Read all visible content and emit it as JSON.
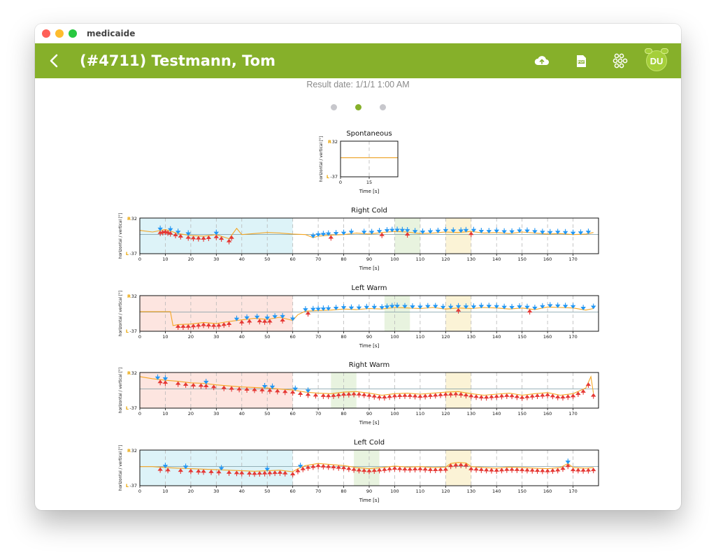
{
  "app_name": "medicaide",
  "header": {
    "title": "(#4711) Testmann, Tom",
    "avatar_initials": "DU",
    "accent_color": "#86b02a",
    "icons": [
      "back-chevron-icon",
      "cloud-upload-icon",
      "pdf-icon",
      "molecule-network-icon"
    ]
  },
  "result_date": "Result date: 1/1/1 1:00 AM",
  "pager": {
    "pages": 3,
    "active_index": 1
  },
  "chart_data": [
    {
      "type": "line",
      "title": "Spontaneous",
      "xlabel": "Time [s]",
      "ylabel": "horizontal / vertical [°]",
      "y_top_label": "32",
      "y_top_side": "R",
      "y_bottom_label": "-37",
      "y_bottom_side": "L",
      "xlim": [
        0,
        30
      ],
      "ylim": [
        -37,
        32
      ],
      "x_ticks": [
        0,
        15
      ],
      "baseline": 0,
      "series": [
        {
          "color": "#f5a623",
          "x": [
            0,
            30
          ],
          "y": [
            0,
            0
          ]
        }
      ]
    },
    {
      "type": "line",
      "title": "Right Cold",
      "xlabel": "Time [s]",
      "ylabel": "horizontal / vertical [°]",
      "y_top_label": "32",
      "y_top_side": "R",
      "y_bottom_label": "-37",
      "y_bottom_side": "L",
      "xlim": [
        0,
        180
      ],
      "ylim": [
        -37,
        32
      ],
      "x_ticks": [
        0,
        10,
        20,
        30,
        40,
        50,
        60,
        70,
        80,
        90,
        100,
        110,
        120,
        130,
        140,
        150,
        160,
        170
      ],
      "baseline": 0,
      "regions": [
        {
          "from": 0,
          "to": 60,
          "color": "#ddf3f8"
        },
        {
          "from": 100,
          "to": 110,
          "color": "#e8f3df"
        },
        {
          "from": 120,
          "to": 130,
          "color": "#fbf3d6"
        }
      ],
      "series": [
        {
          "color": "#f5a623",
          "x": [
            0,
            5,
            10,
            15,
            20,
            25,
            30,
            35,
            38,
            40,
            45,
            50,
            55,
            60,
            65,
            68,
            70,
            75,
            80,
            85,
            90,
            95,
            100,
            105,
            110,
            115,
            120,
            125,
            130,
            135,
            140,
            145,
            150,
            155,
            160,
            165,
            170,
            175,
            178
          ],
          "y": [
            8,
            5,
            10,
            2,
            -2,
            -3,
            0,
            -8,
            12,
            0,
            2,
            4,
            3,
            1,
            0,
            -6,
            -3,
            -1,
            0,
            3,
            1,
            4,
            6,
            5,
            2,
            3,
            5,
            4,
            6,
            3,
            4,
            2,
            5,
            3,
            1,
            2,
            0,
            1,
            4
          ]
        }
      ],
      "markers_up": {
        "color": "#e53935",
        "x": [
          8,
          9,
          10,
          11,
          12,
          14,
          16,
          19,
          21,
          23,
          25,
          27,
          30,
          32,
          35,
          36,
          75,
          95,
          105,
          130
        ]
      },
      "markers_down": {
        "color": "#2196f3",
        "x": [
          8,
          12,
          15,
          19,
          30,
          68,
          70,
          72,
          74,
          77,
          80,
          83,
          88,
          91,
          94,
          97,
          99,
          101,
          103,
          105,
          108,
          111,
          114,
          117,
          120,
          123,
          126,
          128,
          131,
          134,
          137,
          140,
          143,
          146,
          149,
          152,
          155,
          158,
          161,
          164,
          167,
          170,
          173,
          176
        ]
      }
    },
    {
      "type": "line",
      "title": "Left Warm",
      "xlabel": "Time [s]",
      "ylabel": "horizontal / vertical [°]",
      "y_top_label": "32",
      "y_top_side": "R",
      "y_bottom_label": "-37",
      "y_bottom_side": "L",
      "xlim": [
        0,
        180
      ],
      "ylim": [
        -37,
        32
      ],
      "x_ticks": [
        0,
        10,
        20,
        30,
        40,
        50,
        60,
        70,
        80,
        90,
        100,
        110,
        120,
        130,
        140,
        150,
        160,
        170
      ],
      "baseline": 0,
      "regions": [
        {
          "from": 0,
          "to": 60,
          "color": "#fde5e0"
        },
        {
          "from": 96,
          "to": 106,
          "color": "#e8f3df"
        },
        {
          "from": 120,
          "to": 130,
          "color": "#fbf3d6"
        }
      ],
      "series": [
        {
          "color": "#f5a623",
          "x": [
            0,
            5,
            12,
            13,
            15,
            20,
            25,
            30,
            35,
            40,
            45,
            50,
            55,
            60,
            62,
            65,
            70,
            75,
            80,
            85,
            90,
            95,
            100,
            105,
            110,
            115,
            120,
            125,
            130,
            135,
            140,
            145,
            150,
            155,
            160,
            165,
            170,
            175,
            178
          ],
          "y": [
            1,
            1,
            1,
            -26,
            -24,
            -23,
            -20,
            -22,
            -18,
            -15,
            -12,
            -14,
            -10,
            -16,
            -5,
            2,
            3,
            4,
            6,
            5,
            7,
            6,
            9,
            8,
            7,
            9,
            6,
            8,
            7,
            9,
            8,
            6,
            8,
            5,
            10,
            9,
            8,
            4,
            7
          ]
        }
      ],
      "markers_up": {
        "color": "#e53935",
        "x": [
          15,
          17,
          19,
          21,
          23,
          25,
          27,
          29,
          31,
          33,
          35,
          40,
          43,
          47,
          49,
          51,
          56,
          66,
          125,
          153
        ]
      },
      "markers_down": {
        "color": "#2196f3",
        "x": [
          38,
          42,
          46,
          50,
          53,
          56,
          60,
          65,
          68,
          70,
          72,
          74,
          77,
          80,
          83,
          86,
          89,
          92,
          95,
          97,
          99,
          101,
          104,
          107,
          110,
          113,
          116,
          119,
          122,
          125,
          128,
          131,
          134,
          137,
          140,
          143,
          146,
          149,
          152,
          155,
          158,
          161,
          164,
          167,
          170,
          174,
          178
        ]
      }
    },
    {
      "type": "line",
      "title": "Right Warm",
      "xlabel": "Time [s]",
      "ylabel": "horizontal / vertical [°]",
      "y_top_label": "32",
      "y_top_side": "R",
      "y_bottom_label": "-37",
      "y_bottom_side": "L",
      "xlim": [
        0,
        180
      ],
      "ylim": [
        -37,
        32
      ],
      "x_ticks": [
        0,
        10,
        20,
        30,
        40,
        50,
        60,
        70,
        80,
        90,
        100,
        110,
        120,
        130,
        140,
        150,
        160,
        170
      ],
      "baseline": 0,
      "regions": [
        {
          "from": 0,
          "to": 60,
          "color": "#fde5e0"
        },
        {
          "from": 75,
          "to": 85,
          "color": "#e8f3df"
        },
        {
          "from": 120,
          "to": 130,
          "color": "#fbf3d6"
        }
      ],
      "series": [
        {
          "color": "#f5a623",
          "x": [
            0,
            5,
            10,
            15,
            20,
            25,
            30,
            35,
            40,
            45,
            50,
            55,
            60,
            65,
            70,
            75,
            80,
            85,
            90,
            95,
            100,
            105,
            110,
            115,
            120,
            125,
            130,
            135,
            140,
            145,
            150,
            155,
            160,
            165,
            170,
            175,
            177,
            178
          ],
          "y": [
            24,
            20,
            17,
            15,
            12,
            11,
            8,
            6,
            4,
            3,
            2,
            0,
            -2,
            -6,
            -8,
            -9,
            -6,
            -5,
            -8,
            -12,
            -9,
            -8,
            -10,
            -8,
            -6,
            -5,
            -9,
            -12,
            -10,
            -8,
            -12,
            -9,
            -7,
            -12,
            -9,
            2,
            24,
            -8
          ]
        }
      ],
      "markers_up": {
        "color": "#e53935",
        "x": [
          8,
          10,
          15,
          18,
          21,
          24,
          26,
          29,
          33,
          36,
          39,
          42,
          45,
          48,
          51,
          54,
          57,
          60,
          63,
          66,
          69,
          72,
          74,
          76,
          78,
          80,
          82,
          84,
          86,
          88,
          90,
          92,
          94,
          96,
          98,
          100,
          102,
          104,
          106,
          108,
          110,
          112,
          114,
          116,
          118,
          120,
          122,
          124,
          126,
          128,
          130,
          132,
          134,
          136,
          138,
          140,
          142,
          144,
          146,
          148,
          150,
          152,
          154,
          156,
          158,
          160,
          162,
          164,
          166,
          168,
          170,
          172,
          174,
          176,
          178
        ]
      },
      "markers_down": {
        "color": "#2196f3",
        "x": [
          7,
          10,
          26,
          49,
          52,
          61,
          66
        ]
      }
    },
    {
      "type": "line",
      "title": "Left Cold",
      "xlabel": "Time [s]",
      "ylabel": "horizontal / vertical [°]",
      "y_top_label": "32",
      "y_top_side": "R",
      "y_bottom_label": "-37",
      "y_bottom_side": "L",
      "xlim": [
        0,
        180
      ],
      "ylim": [
        -37,
        32
      ],
      "x_ticks": [
        0,
        10,
        20,
        30,
        40,
        50,
        60,
        70,
        80,
        90,
        100,
        110,
        120,
        130,
        140,
        150,
        160,
        170
      ],
      "baseline": 0,
      "regions": [
        {
          "from": 0,
          "to": 60,
          "color": "#ddf3f8"
        },
        {
          "from": 84,
          "to": 94,
          "color": "#e8f3df"
        },
        {
          "from": 120,
          "to": 130,
          "color": "#fbf3d6"
        }
      ],
      "series": [
        {
          "color": "#f5a623",
          "x": [
            0,
            5,
            10,
            15,
            20,
            25,
            30,
            35,
            40,
            45,
            50,
            55,
            60,
            62,
            65,
            70,
            75,
            80,
            85,
            90,
            95,
            100,
            105,
            110,
            115,
            120,
            122,
            125,
            128,
            130,
            135,
            140,
            145,
            150,
            155,
            160,
            165,
            168,
            170,
            175,
            178
          ],
          "y": [
            0,
            0,
            -2,
            -3,
            -4,
            -5,
            -6,
            -7,
            -8,
            -9,
            -8,
            -7,
            -10,
            -4,
            2,
            6,
            4,
            2,
            -2,
            -4,
            -2,
            1,
            -1,
            0,
            -2,
            -1,
            6,
            8,
            7,
            0,
            -2,
            -3,
            -1,
            -2,
            -3,
            -4,
            -2,
            6,
            -2,
            -3,
            -2
          ]
        }
      ],
      "markers_up": {
        "color": "#e53935",
        "x": [
          8,
          11,
          16,
          20,
          23,
          25,
          28,
          31,
          35,
          38,
          40,
          43,
          45,
          47,
          49,
          51,
          53,
          55,
          57,
          60,
          62,
          64,
          66,
          68,
          70,
          72,
          74,
          76,
          78,
          80,
          82,
          84,
          86,
          88,
          90,
          92,
          94,
          96,
          98,
          100,
          102,
          104,
          106,
          108,
          110,
          112,
          114,
          116,
          118,
          120,
          122,
          124,
          126,
          128,
          130,
          132,
          134,
          136,
          138,
          140,
          142,
          144,
          146,
          148,
          150,
          152,
          154,
          156,
          158,
          160,
          162,
          164,
          166,
          168,
          170,
          172,
          174,
          176,
          178
        ]
      },
      "markers_down": {
        "color": "#2196f3",
        "x": [
          10,
          18,
          32,
          50,
          63,
          168
        ]
      }
    }
  ]
}
